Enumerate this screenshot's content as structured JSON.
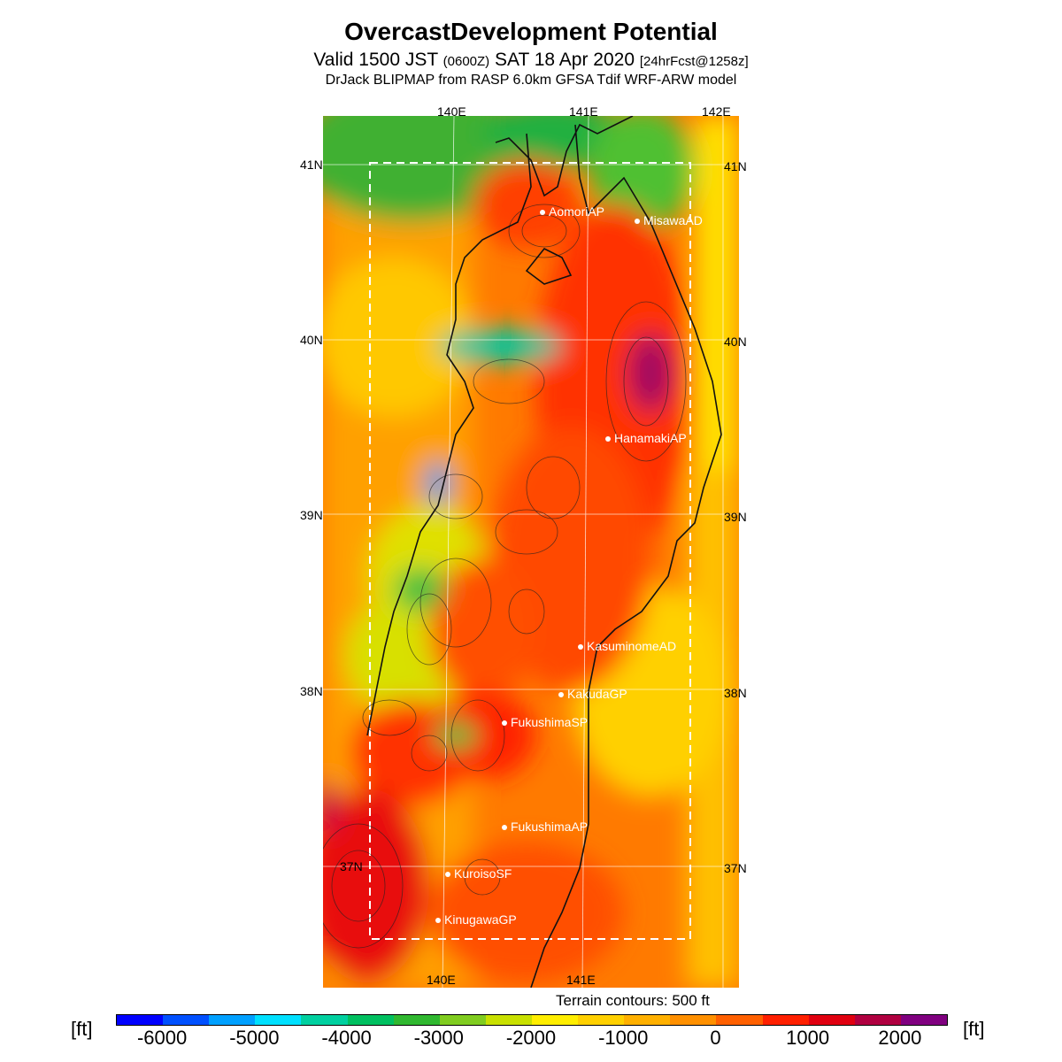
{
  "header": {
    "title": "OvercastDevelopment Potential",
    "subtitle_valid": "Valid 1500 JST",
    "subtitle_zulu": "(0600Z)",
    "subtitle_date": "SAT 18 Apr 2020",
    "subtitle_fcst": "[24hrFcst@1258z]",
    "model": "DrJack BLIPMAP from RASP 6.0km GFSA Tdif WRF-ARW model"
  },
  "axes": {
    "lon_top": [
      "140E",
      "141E",
      "142E"
    ],
    "lon_bottom": [
      "140E",
      "141E"
    ],
    "lat_left": [
      "41N",
      "40N",
      "39N",
      "38N",
      "37N"
    ],
    "lat_right": [
      "41N",
      "40N",
      "39N",
      "38N",
      "37N"
    ]
  },
  "places": [
    {
      "name": "AomoriAP"
    },
    {
      "name": "MisawaAD"
    },
    {
      "name": "HanamakiAP"
    },
    {
      "name": "KasuminomeAD"
    },
    {
      "name": "KakudaGP"
    },
    {
      "name": "FukushimaSP"
    },
    {
      "name": "FukushimaAP"
    },
    {
      "name": "KuroisoSF"
    },
    {
      "name": "KinugawaGP"
    }
  ],
  "terrain_note": "Terrain contours: 500 ft",
  "legend": {
    "unit": "[ft]",
    "ticks": [
      "-6000",
      "-5000",
      "-4000",
      "-3000",
      "-2000",
      "-1000",
      "0",
      "1000",
      "2000"
    ],
    "colors": [
      "#0000ff",
      "#0050ff",
      "#00a0ff",
      "#00e0ff",
      "#00d0a0",
      "#00c060",
      "#30b830",
      "#80cc20",
      "#c8e000",
      "#ffee00",
      "#ffd000",
      "#ffb000",
      "#ff9000",
      "#ff6000",
      "#ff2000",
      "#e00010",
      "#b00040",
      "#800080"
    ]
  }
}
